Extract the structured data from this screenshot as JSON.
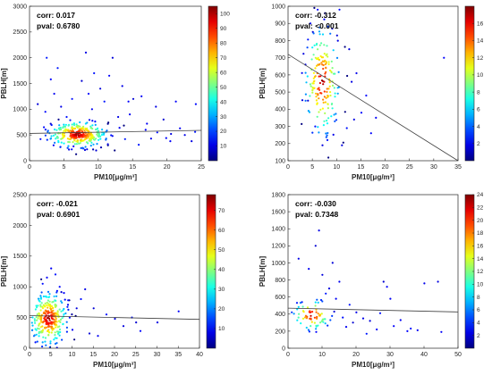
{
  "chart_data": [
    {
      "type": "scatter",
      "annotation": {
        "corr": "corr: 0.017",
        "pval": "pval: 0.6780"
      },
      "xlabel": "PM10[μg/m³]",
      "ylabel": "PBLH[m]",
      "xlim": [
        0,
        25
      ],
      "ylim": [
        0,
        3000
      ],
      "xticks": [
        "0",
        "5",
        "10",
        "15",
        "20",
        "25"
      ],
      "yticks": [
        "0",
        "500",
        "1000",
        "1500",
        "2000",
        "2500",
        "3000"
      ],
      "colorbar": {
        "min": 0,
        "max": 105,
        "ticks": [
          "10",
          "20",
          "30",
          "40",
          "50",
          "60",
          "70",
          "80",
          "90",
          "100"
        ]
      },
      "regression_line": {
        "x": [
          0,
          25
        ],
        "y": [
          530,
          590
        ]
      },
      "cluster": {
        "center": [
          7,
          510
        ],
        "spread": [
          2.2,
          130
        ],
        "count": 300
      },
      "points": [
        [
          2.5,
          2000
        ],
        [
          4.1,
          1800
        ],
        [
          8.2,
          2100
        ],
        [
          9.4,
          1700
        ],
        [
          11.6,
          1650
        ],
        [
          16.3,
          1250
        ],
        [
          13.5,
          1450
        ],
        [
          3.6,
          1300
        ],
        [
          12.1,
          2000
        ],
        [
          18.4,
          1050
        ],
        [
          24.2,
          1100
        ],
        [
          21.3,
          1150
        ],
        [
          6.2,
          1200
        ],
        [
          14.4,
          1150
        ],
        [
          10.3,
          1400
        ],
        [
          4.6,
          1050
        ],
        [
          9.1,
          1000
        ],
        [
          2.3,
          950
        ],
        [
          19.5,
          800
        ],
        [
          15.1,
          1200
        ],
        [
          23.6,
          380
        ],
        [
          20.5,
          380
        ],
        [
          17.7,
          430
        ],
        [
          22.6,
          500
        ],
        [
          16.9,
          600
        ],
        [
          13.9,
          420
        ],
        [
          11.4,
          320
        ],
        [
          9.7,
          200
        ],
        [
          6.4,
          280
        ],
        [
          3.5,
          300
        ],
        [
          1.6,
          420
        ],
        [
          14.6,
          900
        ],
        [
          2.1,
          650
        ],
        [
          18.6,
          550
        ],
        [
          12.9,
          850
        ],
        [
          5.4,
          850
        ],
        [
          7.6,
          1550
        ],
        [
          10.9,
          1150
        ],
        [
          1.2,
          1100
        ],
        [
          24.1,
          560
        ],
        [
          15.9,
          310
        ],
        [
          20.6,
          520
        ],
        [
          17.1,
          720
        ],
        [
          13.1,
          640
        ],
        [
          19.9,
          440
        ],
        [
          21.9,
          630
        ],
        [
          8.6,
          1300
        ],
        [
          3.1,
          1580
        ]
      ]
    },
    {
      "type": "scatter",
      "annotation": {
        "corr": "corr: -0.312",
        "pval": "pval: <0.001"
      },
      "xlabel": "PM10[μg/m³]",
      "ylabel": "PBLH[m]",
      "xlim": [
        0,
        35
      ],
      "ylim": [
        100,
        1000
      ],
      "xticks": [
        "0",
        "5",
        "10",
        "15",
        "20",
        "25",
        "30",
        "35"
      ],
      "yticks": [
        "100",
        "200",
        "300",
        "400",
        "500",
        "600",
        "700",
        "800",
        "900",
        "1000"
      ],
      "colorbar": {
        "min": 0,
        "max": 18,
        "ticks": [
          "2",
          "4",
          "6",
          "8",
          "10",
          "12",
          "14",
          "16"
        ]
      },
      "regression_line": {
        "x": [
          0,
          35
        ],
        "y": [
          720,
          100
        ]
      },
      "cluster": {
        "center": [
          7,
          560
        ],
        "spread": [
          1.8,
          160
        ],
        "count": 180
      },
      "points": [
        [
          6.1,
          980
        ],
        [
          7.6,
          960
        ],
        [
          4.6,
          900
        ],
        [
          5.1,
          850
        ],
        [
          10.1,
          830
        ],
        [
          9.1,
          870
        ],
        [
          14.1,
          610
        ],
        [
          13.1,
          560
        ],
        [
          12.1,
          290
        ],
        [
          15.1,
          380
        ],
        [
          11.1,
          190
        ],
        [
          32.1,
          700
        ],
        [
          3.6,
          660
        ],
        [
          4.1,
          450
        ],
        [
          16.1,
          480
        ],
        [
          12.6,
          750
        ],
        [
          8.1,
          220
        ],
        [
          17.1,
          260
        ],
        [
          5.6,
          300
        ],
        [
          18.1,
          350
        ],
        [
          10.6,
          980
        ],
        [
          13.6,
          340
        ],
        [
          7.1,
          190
        ]
      ]
    },
    {
      "type": "scatter",
      "annotation": {
        "corr": "corr: -0.021",
        "pval": "pval: 0.6901"
      },
      "xlabel": "PM10[μg/m³]",
      "ylabel": "PBLH[m]",
      "xlim": [
        0,
        40
      ],
      "ylim": [
        0,
        2500
      ],
      "xticks": [
        "0",
        "5",
        "10",
        "15",
        "20",
        "25",
        "30",
        "35",
        "40"
      ],
      "yticks": [
        "0",
        "500",
        "1000",
        "1500",
        "2000",
        "2500"
      ],
      "colorbar": {
        "min": 0,
        "max": 78,
        "ticks": [
          "10",
          "20",
          "30",
          "40",
          "50",
          "60",
          "70"
        ]
      },
      "regression_line": {
        "x": [
          0,
          40
        ],
        "y": [
          530,
          470
        ]
      },
      "cluster": {
        "center": [
          4.5,
          480
        ],
        "spread": [
          2.2,
          220
        ],
        "count": 300
      },
      "points": [
        [
          5.1,
          1300
        ],
        [
          6.1,
          1200
        ],
        [
          4.1,
          1150
        ],
        [
          7.1,
          1000
        ],
        [
          8.1,
          900
        ],
        [
          12.1,
          800
        ],
        [
          15.1,
          650
        ],
        [
          18.1,
          550
        ],
        [
          20.1,
          480
        ],
        [
          25.1,
          420
        ],
        [
          30.1,
          420
        ],
        [
          35.1,
          600
        ],
        [
          10.1,
          300
        ],
        [
          14.1,
          240
        ],
        [
          22.1,
          360
        ],
        [
          16.1,
          200
        ],
        [
          3.1,
          1050
        ],
        [
          9.1,
          780
        ],
        [
          11.1,
          650
        ],
        [
          24.1,
          500
        ],
        [
          13.1,
          960
        ],
        [
          26.1,
          280
        ]
      ]
    },
    {
      "type": "scatter",
      "annotation": {
        "corr": "corr: -0.030",
        "pval": "pval: 0.7348"
      },
      "xlabel": "PM10[μg/m³]",
      "ylabel": "PBLH[m]",
      "xlim": [
        0,
        50
      ],
      "ylim": [
        0,
        1800
      ],
      "xticks": [
        "0",
        "10",
        "20",
        "30",
        "40",
        "50"
      ],
      "yticks": [
        "0",
        "200",
        "400",
        "600",
        "800",
        "1000",
        "1200",
        "1400",
        "1600",
        "1800"
      ],
      "colorbar": {
        "min": 0,
        "max": 24,
        "ticks": [
          "2",
          "4",
          "6",
          "8",
          "10",
          "12",
          "14",
          "16",
          "18",
          "20",
          "22",
          "24"
        ]
      },
      "regression_line": {
        "x": [
          0,
          50
        ],
        "y": [
          470,
          425
        ]
      },
      "cluster": {
        "center": [
          7,
          390
        ],
        "spread": [
          2.8,
          90
        ],
        "count": 70
      },
      "points": [
        [
          9.1,
          1380
        ],
        [
          8.1,
          1200
        ],
        [
          3.1,
          1050
        ],
        [
          13.1,
          1000
        ],
        [
          15.1,
          780
        ],
        [
          12.1,
          700
        ],
        [
          14.1,
          580
        ],
        [
          18.1,
          510
        ],
        [
          20.1,
          420
        ],
        [
          22.1,
          350
        ],
        [
          28.1,
          780
        ],
        [
          29.1,
          720
        ],
        [
          30.1,
          580
        ],
        [
          31.1,
          260
        ],
        [
          35.1,
          200
        ],
        [
          40.1,
          760
        ],
        [
          44.1,
          780
        ],
        [
          26.1,
          220
        ],
        [
          6.1,
          930
        ],
        [
          10.1,
          860
        ],
        [
          4.1,
          540
        ],
        [
          16.1,
          360
        ],
        [
          23.1,
          170
        ],
        [
          24.1,
          320
        ],
        [
          36.1,
          230
        ],
        [
          38.1,
          210
        ],
        [
          45.1,
          190
        ],
        [
          11.1,
          640
        ],
        [
          17.1,
          250
        ],
        [
          27.1,
          410
        ],
        [
          19.1,
          300
        ],
        [
          33.1,
          330
        ]
      ]
    }
  ]
}
